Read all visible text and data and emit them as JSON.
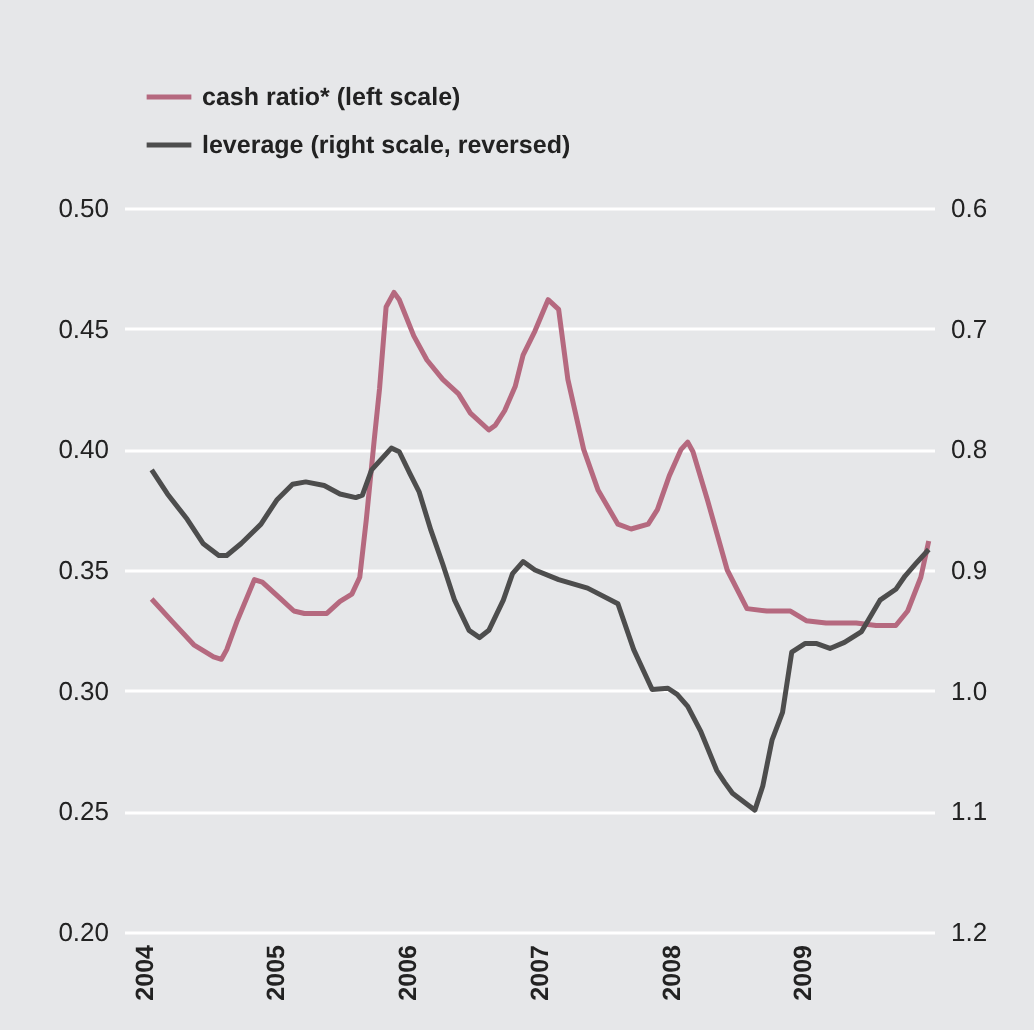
{
  "chart_data": {
    "type": "line",
    "xlim": [
      2003.85,
      2010
    ],
    "xticks": [
      2004,
      2005,
      2006,
      2007,
      2008,
      2009
    ],
    "ylim": [
      0.2,
      0.5
    ],
    "yticks": [
      {
        "value": 0.2,
        "label": "0.20"
      },
      {
        "value": 0.25,
        "label": "0.25"
      },
      {
        "value": 0.3,
        "label": "0.30"
      },
      {
        "value": 0.35,
        "label": "0.35"
      },
      {
        "value": 0.4,
        "label": "0.40"
      },
      {
        "value": 0.45,
        "label": "0.45"
      },
      {
        "value": 0.5,
        "label": "0.50"
      }
    ],
    "y2lim": [
      1.2,
      0.6
    ],
    "y2ticks": [
      0.6,
      0.7,
      0.8,
      0.9,
      {
        "value": 1.0,
        "label": "1.0"
      },
      1.1,
      1.2
    ],
    "grid": "y",
    "legend": "top left",
    "series": [
      {
        "name": "cash ratio* (left scale)",
        "color": "#b5697f",
        "x": [
          2004.06,
          2004.21,
          2004.38,
          2004.53,
          2004.59,
          2004.63,
          2004.71,
          2004.84,
          2004.9,
          2005.04,
          2005.14,
          2005.22,
          2005.39,
          2005.49,
          2005.58,
          2005.64,
          2005.69,
          2005.75,
          2005.79,
          2005.84,
          2005.9,
          2005.94,
          2006.05,
          2006.15,
          2006.27,
          2006.39,
          2006.48,
          2006.62,
          2006.67,
          2006.74,
          2006.82,
          2006.88,
          2006.97,
          2007.07,
          2007.15,
          2007.22,
          2007.34,
          2007.45,
          2007.6,
          2007.7,
          2007.83,
          2007.9,
          2007.99,
          2008.08,
          2008.13,
          2008.17,
          2008.28,
          2008.43,
          2008.58,
          2008.73,
          2008.91,
          2009.03,
          2009.18,
          2009.41,
          2009.56,
          2009.71,
          2009.8,
          2009.9,
          2009.96
        ],
        "values": [
          0.338,
          0.329,
          0.319,
          0.314,
          0.313,
          0.317,
          0.329,
          0.346,
          0.345,
          0.338,
          0.333,
          0.332,
          0.332,
          0.337,
          0.34,
          0.347,
          0.371,
          0.404,
          0.425,
          0.459,
          0.465,
          0.462,
          0.447,
          0.437,
          0.429,
          0.423,
          0.415,
          0.408,
          0.41,
          0.416,
          0.426,
          0.439,
          0.449,
          0.462,
          0.458,
          0.429,
          0.4,
          0.383,
          0.369,
          0.367,
          0.369,
          0.375,
          0.389,
          0.4,
          0.403,
          0.399,
          0.379,
          0.35,
          0.334,
          0.333,
          0.333,
          0.329,
          0.328,
          0.328,
          0.327,
          0.327,
          0.333,
          0.347,
          0.362
        ]
      },
      {
        "name": "leverage (right scale, reversed)",
        "color": "#4d4d4d",
        "axis": "y2",
        "x": [
          2004.06,
          2004.18,
          2004.33,
          2004.45,
          2004.57,
          2004.63,
          2004.74,
          2004.89,
          2005.01,
          2005.13,
          2005.23,
          2005.37,
          2005.49,
          2005.61,
          2005.66,
          2005.73,
          2005.88,
          2005.94,
          2006.02,
          2006.09,
          2006.18,
          2006.27,
          2006.36,
          2006.47,
          2006.55,
          2006.62,
          2006.73,
          2006.8,
          2006.88,
          2006.97,
          2007.15,
          2007.37,
          2007.6,
          2007.72,
          2007.86,
          2007.98,
          2008.05,
          2008.13,
          2008.23,
          2008.35,
          2008.41,
          2008.47,
          2008.59,
          2008.64,
          2008.7,
          2008.77,
          2008.85,
          2008.92,
          2009.02,
          2009.11,
          2009.21,
          2009.32,
          2009.45,
          2009.59,
          2009.71,
          2009.78,
          2009.86,
          2009.96
        ],
        "values": [
          0.817,
          0.837,
          0.858,
          0.878,
          0.888,
          0.888,
          0.878,
          0.862,
          0.842,
          0.829,
          0.827,
          0.83,
          0.837,
          0.84,
          0.838,
          0.817,
          0.799,
          0.802,
          0.82,
          0.835,
          0.867,
          0.895,
          0.925,
          0.95,
          0.956,
          0.95,
          0.925,
          0.903,
          0.893,
          0.9,
          0.908,
          0.915,
          0.928,
          0.966,
          0.999,
          0.998,
          1.003,
          1.013,
          1.034,
          1.066,
          1.076,
          1.085,
          1.095,
          1.099,
          1.079,
          1.041,
          1.018,
          0.968,
          0.961,
          0.961,
          0.965,
          0.96,
          0.951,
          0.925,
          0.916,
          0.905,
          0.895,
          0.883
        ]
      }
    ]
  }
}
